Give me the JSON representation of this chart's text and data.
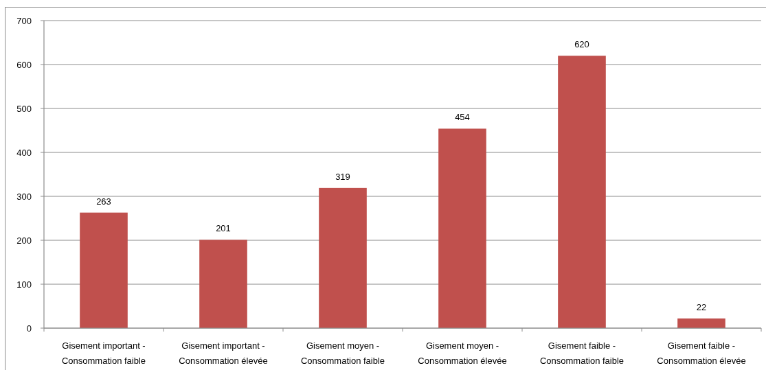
{
  "chart_data": {
    "type": "bar",
    "categories": [
      "Gisement important - Consommation faible",
      "Gisement important - Consommation élevée",
      "Gisement moyen - Consommation faible",
      "Gisement moyen - Consommation élevée",
      "Gisement faible - Consommation faible",
      "Gisement faible - Consommation élevée"
    ],
    "values": [
      263,
      201,
      319,
      454,
      620,
      22
    ],
    "color": "#c0504d",
    "ylim": [
      0,
      700
    ],
    "yticks": [
      0,
      100,
      200,
      300,
      400,
      500,
      600,
      700
    ],
    "grid": "y",
    "data_labels": true
  }
}
